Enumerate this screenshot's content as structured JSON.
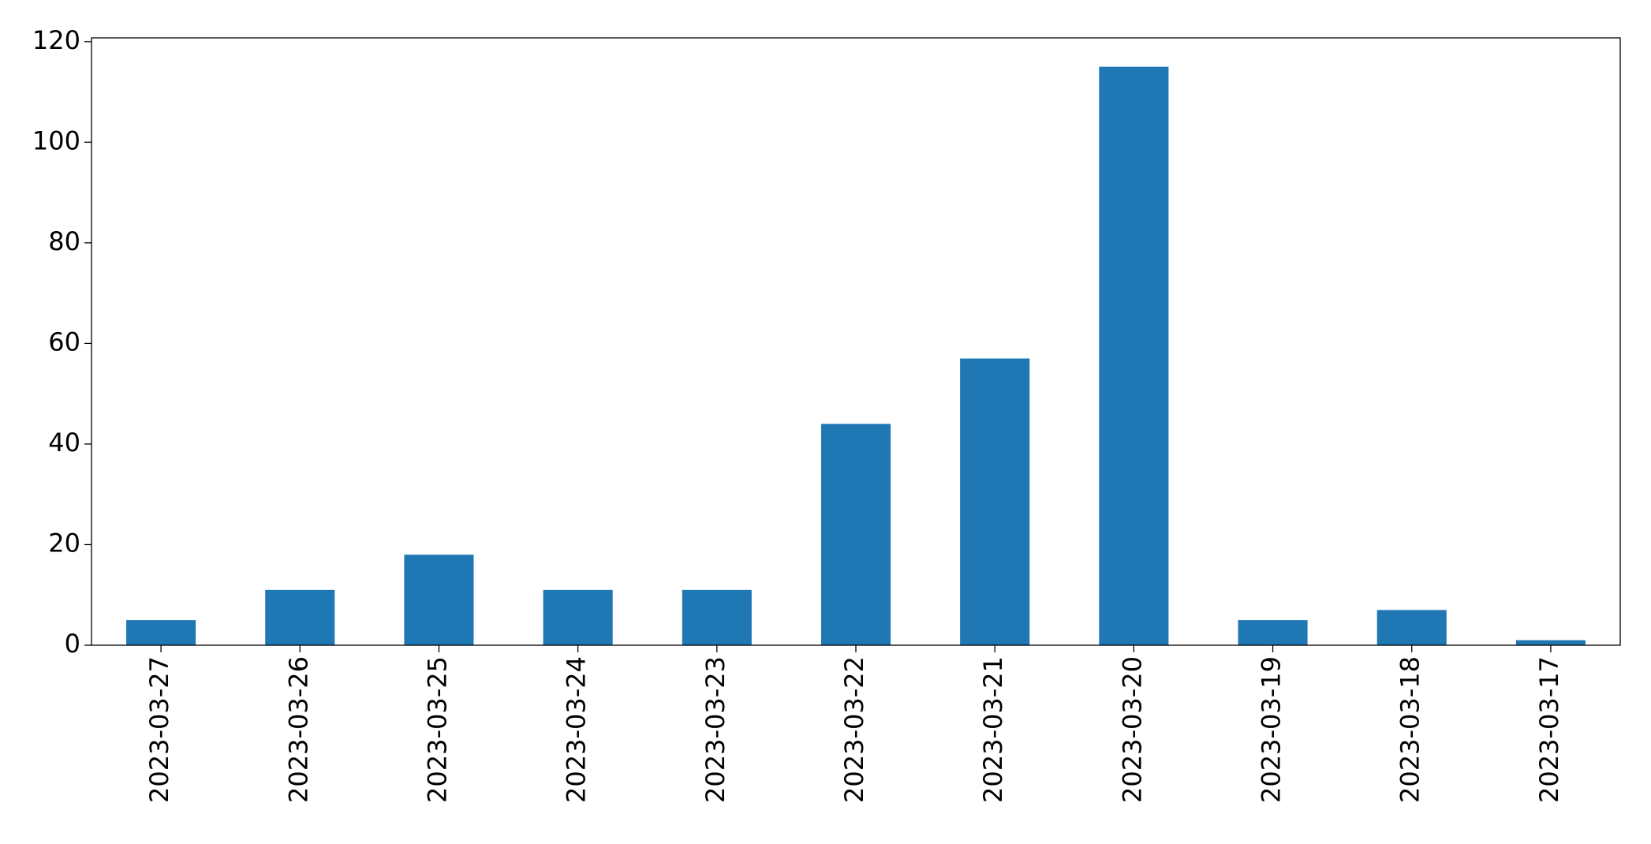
{
  "chart_data": {
    "type": "bar",
    "categories": [
      "2023-03-27",
      "2023-03-26",
      "2023-03-25",
      "2023-03-24",
      "2023-03-23",
      "2023-03-22",
      "2023-03-21",
      "2023-03-20",
      "2023-03-19",
      "2023-03-18",
      "2023-03-17"
    ],
    "values": [
      5,
      11,
      18,
      11,
      11,
      44,
      57,
      115,
      5,
      7,
      1
    ],
    "color": "#1f77b4",
    "ylim": [
      0,
      120.75
    ],
    "yticks": [
      0,
      20,
      40,
      60,
      80,
      100,
      120
    ],
    "grid": false
  }
}
